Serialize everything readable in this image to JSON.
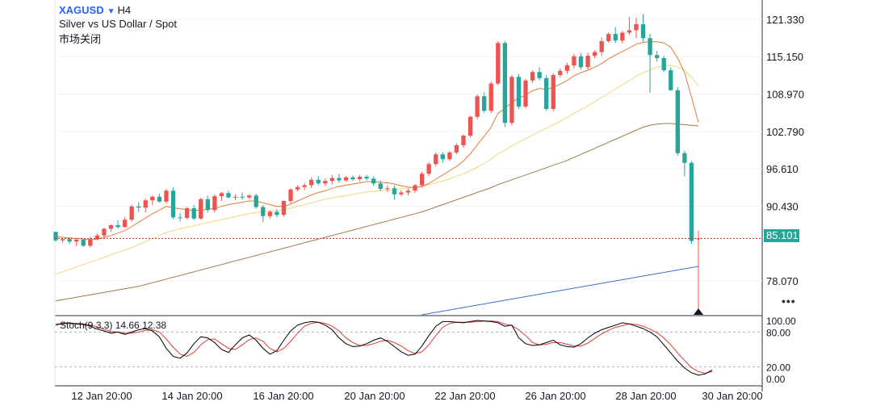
{
  "header": {
    "symbol": "XAGUSD",
    "timeframe": "H4",
    "description": "Silver vs US Dollar / Spot",
    "market_status": "市场关闭",
    "last_price": "85.101"
  },
  "stoch_label": "Stoch(9,3,3) 14.66 12.38",
  "colors": {
    "up": "#ef5350",
    "down": "#26a69a",
    "ma_fast": "#e07b39",
    "ma_mid": "#f0d67a",
    "ma_slow": "#a07a4a",
    "ma_long": "#3d6fd6",
    "stoch_k": "#000000",
    "stoch_d": "#e53935",
    "price_line": "#c0392b"
  },
  "icons": {
    "symbol_arrow": "triangle-down-icon",
    "more": "ellipsis-icon",
    "current_bar": "triangle-up-icon"
  },
  "chart_data": {
    "type": "candlestick",
    "price_axis_labels": [
      "121.330",
      "115.150",
      "108.970",
      "102.790",
      "96.610",
      "90.430",
      "78.070"
    ],
    "price_range": [
      72.5,
      123.7
    ],
    "time_axis_labels": [
      "12 Jan 20:00",
      "14 Jan 20:00",
      "16 Jan 20:00",
      "20 Jan 20:00",
      "22 Jan 20:00",
      "26 Jan 20:00",
      "28 Jan 20:00",
      "30 Jan 20:00"
    ],
    "stoch_axis_labels": [
      "100.00",
      "80.00",
      "20.00",
      "0.00"
    ],
    "stoch_range": [
      0,
      100
    ],
    "candles": [
      [
        86.2,
        84.6,
        85.4,
        84.8
      ],
      [
        84.8,
        84.4,
        85.2,
        85.0
      ],
      [
        85.0,
        84.2,
        85.3,
        84.6
      ],
      [
        84.6,
        83.8,
        85.2,
        84.9
      ],
      [
        84.9,
        83.7,
        85.0,
        83.9
      ],
      [
        83.9,
        83.6,
        85.4,
        85.0
      ],
      [
        85.0,
        84.8,
        85.9,
        85.6
      ],
      [
        85.6,
        85.2,
        86.9,
        86.7
      ],
      [
        86.7,
        86.2,
        87.5,
        87.3
      ],
      [
        87.3,
        86.7,
        88.1,
        87.0
      ],
      [
        87.0,
        86.9,
        88.6,
        88.2
      ],
      [
        88.2,
        87.9,
        90.7,
        90.4
      ],
      [
        90.4,
        89.5,
        91.1,
        90.2
      ],
      [
        90.2,
        89.4,
        91.7,
        91.4
      ],
      [
        91.4,
        90.6,
        92.2,
        92.0
      ],
      [
        92.0,
        91.0,
        92.5,
        91.2
      ],
      [
        91.2,
        90.9,
        93.3,
        93.0
      ],
      [
        93.0,
        88.3,
        93.5,
        88.6
      ],
      [
        88.6,
        87.9,
        89.3,
        88.5
      ],
      [
        88.5,
        88.2,
        90.3,
        90.1
      ],
      [
        90.1,
        88.1,
        90.6,
        88.4
      ],
      [
        88.4,
        88.2,
        91.8,
        91.6
      ],
      [
        91.6,
        89.4,
        92.2,
        89.8
      ],
      [
        89.8,
        89.4,
        92.4,
        92.1
      ],
      [
        92.1,
        91.3,
        92.8,
        92.6
      ],
      [
        92.6,
        91.7,
        93.0,
        91.9
      ],
      [
        91.9,
        91.4,
        92.4,
        92.0
      ],
      [
        92.0,
        91.5,
        92.7,
        91.9
      ],
      [
        91.9,
        91.7,
        92.4,
        92.2
      ],
      [
        92.2,
        90.0,
        92.5,
        90.3
      ],
      [
        90.3,
        87.8,
        90.6,
        88.8
      ],
      [
        88.8,
        88.4,
        89.8,
        89.5
      ],
      [
        89.5,
        88.6,
        89.9,
        89.0
      ],
      [
        89.0,
        88.7,
        91.4,
        91.3
      ],
      [
        91.3,
        90.9,
        93.4,
        93.2
      ],
      [
        93.2,
        92.9,
        93.9,
        93.6
      ],
      [
        93.6,
        93.1,
        94.2,
        93.9
      ],
      [
        93.9,
        93.4,
        95.2,
        94.8
      ],
      [
        94.8,
        93.9,
        95.4,
        94.2
      ],
      [
        94.2,
        93.8,
        95.0,
        94.6
      ],
      [
        94.6,
        94.0,
        95.6,
        95.1
      ],
      [
        95.1,
        94.3,
        95.8,
        94.7
      ],
      [
        94.7,
        94.5,
        95.4,
        95.2
      ],
      [
        95.2,
        94.6,
        95.5,
        94.9
      ],
      [
        94.9,
        94.5,
        95.6,
        95.3
      ],
      [
        95.3,
        94.7,
        95.6,
        95.0
      ],
      [
        95.0,
        93.8,
        95.4,
        94.2
      ],
      [
        94.2,
        92.9,
        94.7,
        93.3
      ],
      [
        93.3,
        92.8,
        93.9,
        93.4
      ],
      [
        93.4,
        91.5,
        93.9,
        92.4
      ],
      [
        92.4,
        92.1,
        93.1,
        92.7
      ],
      [
        92.7,
        92.2,
        93.4,
        93.0
      ],
      [
        93.0,
        92.6,
        94.1,
        93.9
      ],
      [
        93.9,
        93.5,
        96.1,
        95.8
      ],
      [
        95.8,
        95.4,
        97.7,
        97.4
      ],
      [
        97.4,
        97.0,
        99.3,
        99.0
      ],
      [
        99.0,
        97.6,
        99.4,
        98.2
      ],
      [
        98.2,
        97.9,
        99.6,
        99.3
      ],
      [
        99.3,
        99.0,
        100.8,
        100.5
      ],
      [
        100.5,
        100.1,
        102.3,
        102.1
      ],
      [
        102.1,
        101.8,
        105.4,
        105.2
      ],
      [
        105.2,
        104.8,
        108.9,
        108.6
      ],
      [
        108.6,
        105.9,
        109.3,
        106.2
      ],
      [
        106.2,
        105.8,
        111.1,
        110.7
      ],
      [
        110.7,
        110.4,
        117.7,
        117.4
      ],
      [
        117.4,
        103.5,
        117.7,
        104.2
      ],
      [
        104.2,
        103.8,
        112.1,
        111.8
      ],
      [
        111.8,
        106.5,
        112.3,
        106.9
      ],
      [
        106.9,
        106.6,
        111.5,
        111.2
      ],
      [
        111.2,
        110.8,
        112.9,
        112.6
      ],
      [
        112.6,
        111.2,
        113.4,
        111.6
      ],
      [
        111.6,
        106.2,
        112.1,
        106.5
      ],
      [
        106.5,
        106.1,
        112.4,
        112.1
      ],
      [
        112.1,
        111.7,
        113.2,
        112.8
      ],
      [
        112.8,
        112.3,
        114.1,
        113.7
      ],
      [
        113.7,
        113.2,
        115.6,
        115.2
      ],
      [
        115.2,
        113.0,
        115.7,
        113.4
      ],
      [
        113.4,
        113.0,
        115.8,
        115.3
      ],
      [
        115.3,
        114.9,
        116.2,
        115.9
      ],
      [
        115.9,
        115.3,
        118.3,
        117.7
      ],
      [
        117.7,
        117.4,
        119.2,
        118.9
      ],
      [
        118.9,
        117.4,
        120.0,
        117.8
      ],
      [
        117.8,
        117.3,
        119.4,
        119.1
      ],
      [
        119.1,
        118.7,
        121.7,
        119.5
      ],
      [
        119.5,
        118.2,
        121.6,
        120.5
      ],
      [
        120.5,
        117.6,
        122.2,
        118.2
      ],
      [
        118.2,
        109.2,
        118.9,
        115.4
      ],
      [
        115.4,
        114.3,
        116.1,
        114.9
      ],
      [
        114.9,
        112.6,
        115.3,
        112.9
      ],
      [
        112.9,
        109.5,
        113.4,
        109.6
      ],
      [
        109.6,
        98.8,
        110.1,
        99.2
      ],
      [
        99.2,
        95.4,
        99.6,
        97.6
      ],
      [
        97.6,
        84.2,
        97.9,
        84.7
      ],
      [
        85.1,
        72.5,
        86.4,
        85.101
      ]
    ],
    "stoch_k": [
      92,
      95,
      96,
      94,
      93,
      90,
      85,
      82,
      78,
      80,
      76,
      80,
      84,
      86,
      82,
      72,
      52,
      38,
      35,
      44,
      60,
      72,
      70,
      62,
      50,
      45,
      58,
      70,
      75,
      66,
      52,
      42,
      48,
      66,
      82,
      92,
      96,
      98,
      97,
      92,
      84,
      70,
      60,
      55,
      56,
      60,
      66,
      70,
      64,
      55,
      46,
      40,
      42,
      56,
      74,
      90,
      98,
      98,
      97,
      96,
      98,
      100,
      99,
      98,
      96,
      90,
      92,
      70,
      60,
      57,
      58,
      62,
      66,
      58,
      55,
      54,
      60,
      70,
      78,
      84,
      88,
      92,
      96,
      94,
      90,
      86,
      80,
      72,
      58,
      44,
      30,
      18,
      10,
      6,
      8,
      14.66
    ],
    "stoch_d": [
      94,
      94,
      95,
      95,
      94,
      92,
      89,
      85,
      81,
      80,
      78,
      78,
      80,
      83,
      84,
      80,
      68,
      54,
      42,
      38,
      45,
      58,
      67,
      68,
      60,
      52,
      50,
      58,
      67,
      70,
      64,
      52,
      46,
      52,
      64,
      78,
      90,
      95,
      97,
      95,
      90,
      82,
      70,
      62,
      57,
      57,
      60,
      64,
      66,
      62,
      56,
      48,
      43,
      46,
      58,
      74,
      88,
      95,
      97,
      97,
      97,
      98,
      99,
      99,
      98,
      94,
      91,
      84,
      74,
      62,
      58,
      59,
      62,
      62,
      59,
      56,
      56,
      61,
      69,
      77,
      83,
      88,
      91,
      94,
      93,
      90,
      85,
      79,
      70,
      58,
      44,
      31,
      19,
      12,
      9,
      12.38
    ],
    "ma_fast": [
      85.4,
      85.3,
      85.2,
      85.1,
      85.0,
      84.9,
      85.0,
      85.3,
      85.6,
      86.0,
      86.4,
      87.1,
      87.8,
      88.5,
      89.2,
      89.8,
      90.4,
      90.2,
      90.0,
      89.9,
      89.7,
      89.8,
      89.9,
      90.1,
      90.4,
      90.7,
      90.9,
      91.1,
      91.3,
      91.3,
      91.0,
      90.7,
      90.4,
      90.4,
      90.8,
      91.3,
      91.8,
      92.3,
      92.7,
      93.0,
      93.4,
      93.7,
      93.9,
      94.1,
      94.3,
      94.5,
      94.5,
      94.4,
      94.3,
      94.1,
      93.8,
      93.6,
      93.5,
      93.7,
      94.2,
      94.9,
      95.6,
      96.3,
      97.0,
      97.9,
      99.1,
      100.6,
      102.0,
      103.5,
      105.8,
      106.6,
      107.6,
      108.3,
      108.8,
      109.5,
      109.9,
      109.7,
      110.1,
      110.6,
      111.2,
      112.0,
      112.5,
      112.9,
      113.4,
      114.0,
      114.8,
      115.4,
      116.0,
      116.6,
      117.2,
      117.5,
      117.6,
      117.6,
      117.4,
      116.7,
      114.9,
      112.5,
      108.5,
      104.3
    ],
    "ma_mid": [
      79.2,
      79.6,
      80.0,
      80.4,
      80.8,
      81.2,
      81.6,
      82.0,
      82.4,
      82.8,
      83.2,
      83.6,
      84.1,
      84.6,
      85.1,
      85.6,
      86.1,
      86.4,
      86.7,
      87.0,
      87.2,
      87.5,
      87.7,
      88.0,
      88.2,
      88.5,
      88.7,
      89.0,
      89.2,
      89.4,
      89.5,
      89.6,
      89.7,
      89.9,
      90.1,
      90.4,
      90.7,
      91.0,
      91.3,
      91.6,
      91.8,
      92.0,
      92.2,
      92.4,
      92.6,
      92.8,
      92.9,
      93.0,
      93.1,
      93.2,
      93.3,
      93.4,
      93.5,
      93.7,
      94.0,
      94.3,
      94.6,
      95.0,
      95.4,
      95.8,
      96.3,
      96.9,
      97.5,
      98.2,
      99.1,
      99.7,
      100.4,
      101.0,
      101.6,
      102.2,
      102.8,
      103.3,
      103.9,
      104.5,
      105.1,
      105.8,
      106.4,
      107.0,
      107.7,
      108.4,
      109.1,
      109.8,
      110.5,
      111.2,
      111.9,
      112.5,
      113.0,
      113.4,
      113.6,
      113.7,
      113.4,
      112.9,
      111.8,
      110.3
    ],
    "ma_slow": [
      74.8,
      75.0,
      75.2,
      75.4,
      75.6,
      75.8,
      76.0,
      76.2,
      76.4,
      76.6,
      76.8,
      77.0,
      77.2,
      77.5,
      77.8,
      78.1,
      78.4,
      78.7,
      79.0,
      79.3,
      79.6,
      79.9,
      80.2,
      80.5,
      80.8,
      81.1,
      81.4,
      81.7,
      82.0,
      82.3,
      82.6,
      82.9,
      83.2,
      83.5,
      83.8,
      84.1,
      84.4,
      84.7,
      85.0,
      85.3,
      85.6,
      85.9,
      86.2,
      86.5,
      86.8,
      87.1,
      87.4,
      87.7,
      88.0,
      88.3,
      88.6,
      88.9,
      89.2,
      89.5,
      89.9,
      90.3,
      90.7,
      91.1,
      91.5,
      91.9,
      92.3,
      92.7,
      93.1,
      93.5,
      94.0,
      94.4,
      94.8,
      95.2,
      95.6,
      96.0,
      96.4,
      96.8,
      97.2,
      97.6,
      98.0,
      98.5,
      99.0,
      99.5,
      100.0,
      100.5,
      101.0,
      101.5,
      102.0,
      102.5,
      103.0,
      103.5,
      103.8,
      104.0,
      104.1,
      104.1,
      104.0,
      103.9,
      103.8,
      103.7
    ],
    "ma_long": {
      "start_index": 53,
      "values_start": 72.5,
      "values_end": 80.5
    }
  }
}
